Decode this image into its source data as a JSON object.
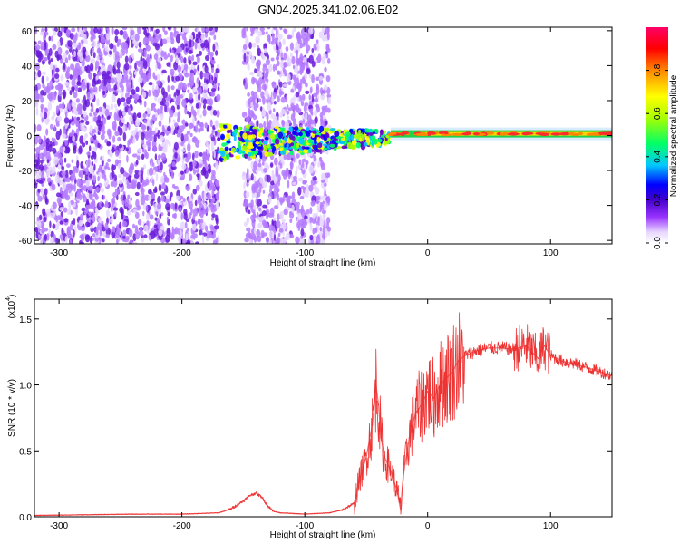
{
  "title": "GN04.2025.341.02.06.E02",
  "chart_data": [
    {
      "type": "heatmap",
      "xlabel": "Height of straight line (km)",
      "ylabel": "Frequency (Hz)",
      "xlim": [
        -320,
        150
      ],
      "ylim": [
        -62,
        62
      ],
      "x_ticks": [
        -300,
        -200,
        -100,
        0,
        100
      ],
      "y_ticks": [
        -60,
        -40,
        -20,
        0,
        20,
        40,
        60
      ],
      "colorbar": {
        "label": "Normalized spectral amplitude",
        "range": [
          0,
          1
        ],
        "ticks": [
          "0.0",
          "0.2",
          "0.4",
          "0.6",
          "0.8"
        ],
        "tick_values": [
          0,
          0.2,
          0.4,
          0.6,
          0.8
        ],
        "colors": [
          "#ffffff",
          "#e8d8ff",
          "#9933ff",
          "#6600cc",
          "#0000ff",
          "#00c8ff",
          "#00ff66",
          "#aaff00",
          "#ffff00",
          "#ff8800",
          "#ff0000",
          "#ff0066"
        ]
      },
      "regions": [
        {
          "x_range": [
            -320,
            -170
          ],
          "f_range": [
            -62,
            62
          ],
          "level": 0.3,
          "kind": "broadband"
        },
        {
          "x_range": [
            -150,
            -80
          ],
          "f_range": [
            -62,
            62
          ],
          "level": 0.25,
          "kind": "broadband"
        },
        {
          "x_range": [
            -170,
            -30
          ],
          "f_range": [
            -20,
            12
          ],
          "level": 0.45,
          "kind": "band"
        },
        {
          "x_range": [
            -30,
            150
          ],
          "f_range": [
            -2,
            4
          ],
          "level": 0.75,
          "kind": "narrow-line",
          "center_hz": 1
        }
      ],
      "grid": true
    },
    {
      "type": "line",
      "xlabel": "Height of straight line (km)",
      "ylabel": "SNR (10 * v/v)",
      "y_multiplier": "(x10",
      "y_multiplier_exp": "4",
      "y_multiplier_close": ")",
      "xlim": [
        -320,
        150
      ],
      "ylim": [
        0,
        1.65
      ],
      "x_ticks": [
        -300,
        -200,
        -100,
        0,
        100
      ],
      "y_ticks": [
        "0.0",
        "0.5",
        "1.0",
        "1.5"
      ],
      "y_tick_values": [
        0,
        0.5,
        1.0,
        1.5
      ],
      "series": [
        {
          "color": "#ee3333",
          "x": [
            -320,
            -280,
            -240,
            -200,
            -170,
            -160,
            -150,
            -145,
            -140,
            -135,
            -130,
            -125,
            -120,
            -100,
            -80,
            -70,
            -60,
            -55,
            -50,
            -45,
            -42,
            -40,
            -38,
            -35,
            -30,
            -25,
            -22,
            -20,
            -15,
            -10,
            -5,
            0,
            5,
            10,
            15,
            20,
            25,
            30,
            40,
            50,
            60,
            70,
            80,
            85,
            90,
            95,
            100,
            110,
            120,
            130,
            140,
            150
          ],
          "y": [
            0.01,
            0.015,
            0.02,
            0.02,
            0.03,
            0.06,
            0.12,
            0.16,
            0.18,
            0.15,
            0.08,
            0.04,
            0.03,
            0.02,
            0.03,
            0.05,
            0.1,
            0.3,
            0.45,
            0.7,
            1.0,
            0.85,
            0.6,
            0.45,
            0.35,
            0.2,
            0.05,
            0.3,
            0.6,
            0.78,
            0.85,
            0.95,
            0.9,
            1.0,
            1.05,
            1.1,
            1.18,
            1.22,
            1.26,
            1.28,
            1.28,
            1.27,
            1.3,
            1.25,
            1.2,
            1.3,
            1.22,
            1.18,
            1.16,
            1.13,
            1.1,
            1.07
          ]
        }
      ],
      "grid": false
    }
  ]
}
